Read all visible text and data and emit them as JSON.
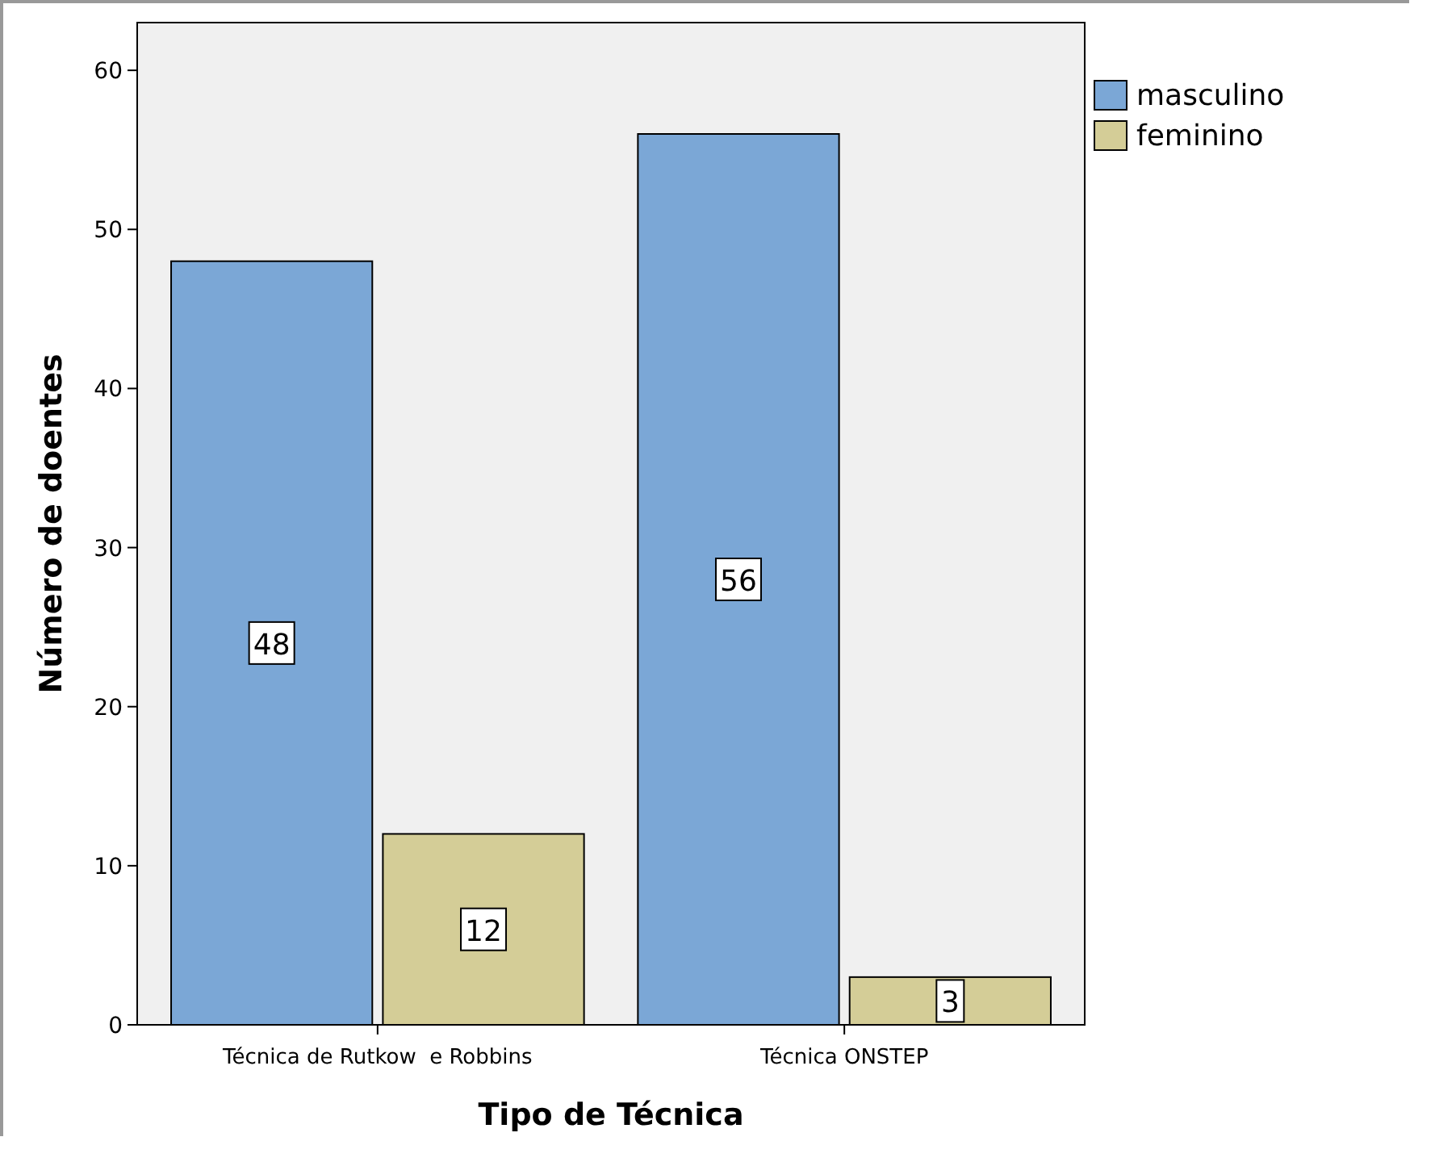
{
  "chart_data": {
    "type": "bar",
    "xlabel": "Tipo de Técnica",
    "ylabel": "Número de doentes",
    "categories": [
      "Técnica de Rutkow  e Robbins",
      "Técnica ONSTEP"
    ],
    "series": [
      {
        "name": "masculino",
        "color": "#7ba7d6",
        "values": [
          48,
          56
        ]
      },
      {
        "name": "feminino",
        "color": "#d4cd97",
        "values": [
          12,
          3
        ]
      }
    ],
    "ylim": [
      0,
      63
    ],
    "yticks": [
      0,
      10,
      20,
      30,
      40,
      50,
      60
    ],
    "data_labels": true,
    "legend": "top right",
    "grid": false
  }
}
